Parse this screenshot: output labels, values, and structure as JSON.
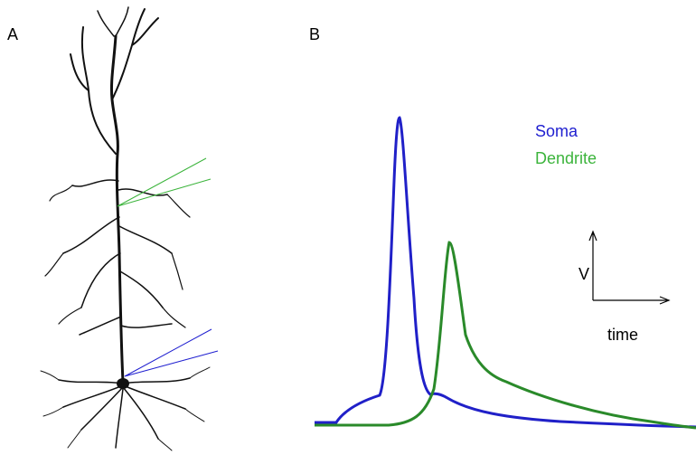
{
  "panels": {
    "a": {
      "label": "A"
    },
    "b": {
      "label": "B",
      "legend": [
        "Soma",
        "Dendrite"
      ],
      "axes": {
        "y": "V",
        "x": "time"
      }
    }
  }
}
